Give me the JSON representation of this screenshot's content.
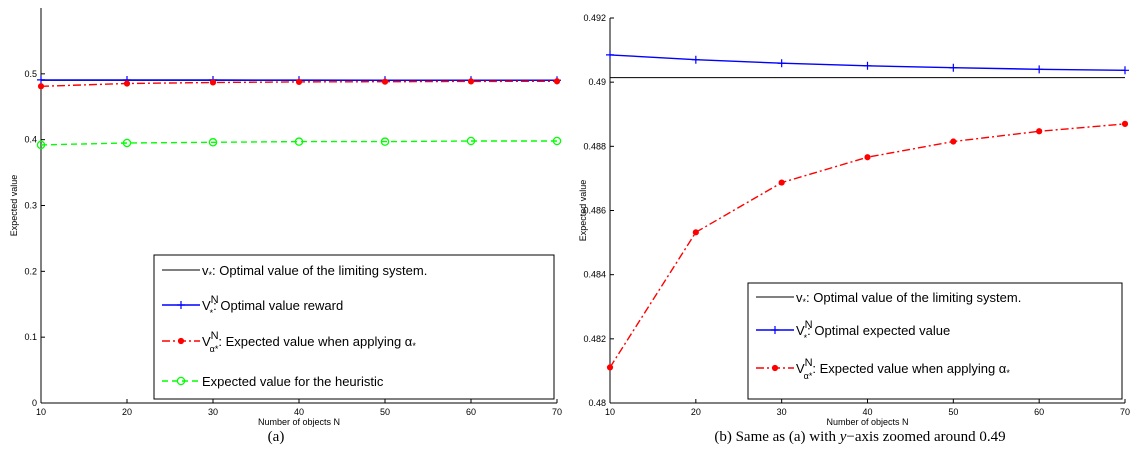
{
  "chart_data": [
    {
      "type": "line",
      "caption": "(a)",
      "xlabel": "Number of objects N",
      "ylabel": "Expected value",
      "xlim": [
        10,
        70
      ],
      "ylim": [
        0,
        0.6
      ],
      "xticks": [
        "10",
        "20",
        "30",
        "40",
        "50",
        "60",
        "70"
      ],
      "yticks": [
        "0",
        "0.1",
        "0.2",
        "0.3",
        "0.4",
        "0.5"
      ],
      "x": [
        10,
        20,
        30,
        40,
        50,
        60,
        70
      ],
      "legend_position": "bottom-right",
      "series": [
        {
          "name": "v* : Optimal value of the limiting system.",
          "legend_text": ": Optimal value of the limiting system.",
          "symbol": "v",
          "subscript": "*",
          "superscript": "",
          "color": "#000000",
          "style": "solid",
          "marker": "none",
          "values": [
            0.4901,
            0.4901,
            0.4901,
            0.4901,
            0.4901,
            0.4901,
            0.4901
          ]
        },
        {
          "name": "V*N : Optimal value reward",
          "legend_text": ": Optimal value reward",
          "symbol": "V",
          "subscript": "*",
          "superscript": "N",
          "color": "#0000ff",
          "style": "solid",
          "marker": "plus",
          "values": [
            0.4908,
            0.4907,
            0.4906,
            0.4905,
            0.4904,
            0.4904,
            0.4903
          ]
        },
        {
          "name": "VNα* : Expected value when applying α*",
          "legend_text": ": Expected value when applying α",
          "legend_suffix_sub": "*",
          "symbol": "V",
          "subscript": "α*",
          "superscript": "N",
          "color": "#ff0000",
          "style": "dashdot",
          "marker": "dot",
          "values": [
            0.4811,
            0.4853,
            0.4869,
            0.4877,
            0.4881,
            0.4885,
            0.4887
          ]
        },
        {
          "name": "Expected value for the heuristic",
          "legend_text": "Expected value for the heuristic",
          "symbol": "",
          "subscript": "",
          "superscript": "",
          "color": "#00ff00",
          "style": "dashed",
          "marker": "circle",
          "values": [
            0.392,
            0.395,
            0.396,
            0.397,
            0.397,
            0.398,
            0.398
          ]
        }
      ]
    },
    {
      "type": "line",
      "caption": "(b) Same as (a) with y−axis zoomed around 0.49",
      "caption_parts": [
        "(b) Same as (a) with ",
        "y",
        "−axis zoomed around 0.49"
      ],
      "xlabel": "Number of objects N",
      "ylabel": "Expected value",
      "xlim": [
        10,
        70
      ],
      "ylim": [
        0.48,
        0.492
      ],
      "xticks": [
        "10",
        "20",
        "30",
        "40",
        "50",
        "60",
        "70"
      ],
      "yticks": [
        "0.48",
        "0.482",
        "0.484",
        "0.486",
        "0.488",
        "0.49",
        "0.492"
      ],
      "x": [
        10,
        20,
        30,
        40,
        50,
        60,
        70
      ],
      "legend_position": "bottom-right",
      "series": [
        {
          "name": "v* : Optimal value of the limiting system.",
          "legend_text": ": Optimal value of the limiting system.",
          "symbol": "v",
          "subscript": "*",
          "superscript": "",
          "color": "#000000",
          "style": "solid",
          "marker": "none",
          "values": [
            0.49014,
            0.49014,
            0.49014,
            0.49014,
            0.49014,
            0.49014,
            0.49014
          ]
        },
        {
          "name": "V*N : Optimal expected value",
          "legend_text": ": Optimal expected value",
          "symbol": "V",
          "subscript": "*",
          "superscript": "N",
          "color": "#0000ff",
          "style": "solid",
          "marker": "plus",
          "values": [
            0.49085,
            0.4907,
            0.49059,
            0.49051,
            0.49045,
            0.4904,
            0.49037
          ]
        },
        {
          "name": "VNα* : Expected value when applying α*",
          "legend_text": ": Expected value when applying α",
          "legend_suffix_sub": "*",
          "symbol": "V",
          "subscript": "α*",
          "superscript": "N",
          "color": "#ff0000",
          "style": "dashdot",
          "marker": "dot",
          "values": [
            0.48111,
            0.48532,
            0.48687,
            0.48766,
            0.48815,
            0.48847,
            0.4887
          ]
        }
      ]
    }
  ]
}
